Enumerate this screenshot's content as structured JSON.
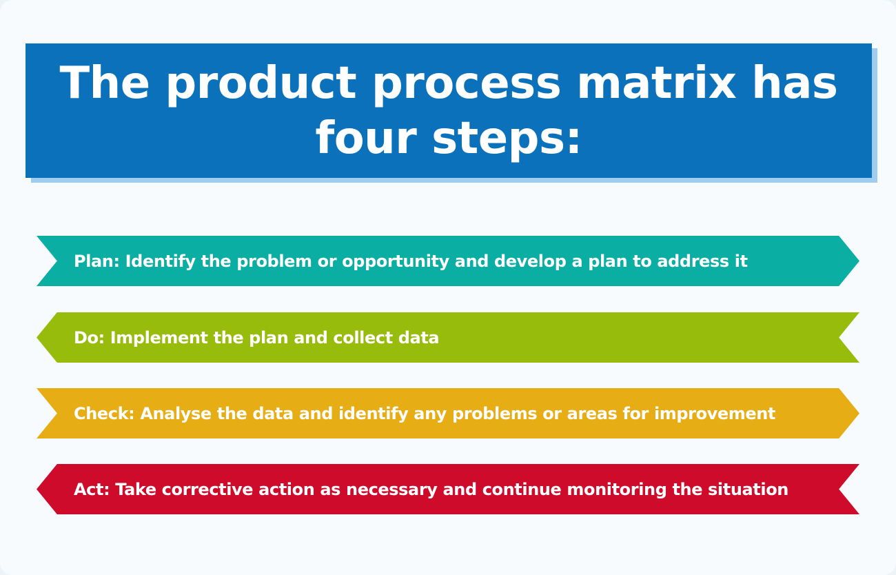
{
  "title": "The product process matrix has four steps:",
  "colors": {
    "title_bg": "#0b71ba",
    "title_shadow": "#9fcdf0",
    "plan": "#0aaea3",
    "do": "#98bc0c",
    "check": "#e7ad14",
    "act": "#cf0b2c"
  },
  "steps": [
    {
      "label": "Plan: Identify the problem or opportunity and develop a plan to address it",
      "color": "#0aaea3",
      "direction": "right"
    },
    {
      "label": "Do: Implement the plan and collect data",
      "color": "#98bc0c",
      "direction": "left"
    },
    {
      "label": "Check: Analyse the data and identify any problems or areas for improvement",
      "color": "#e7ad14",
      "direction": "right"
    },
    {
      "label": "Act: Take corrective action as necessary and continue monitoring the situation",
      "color": "#cf0b2c",
      "direction": "left"
    }
  ]
}
